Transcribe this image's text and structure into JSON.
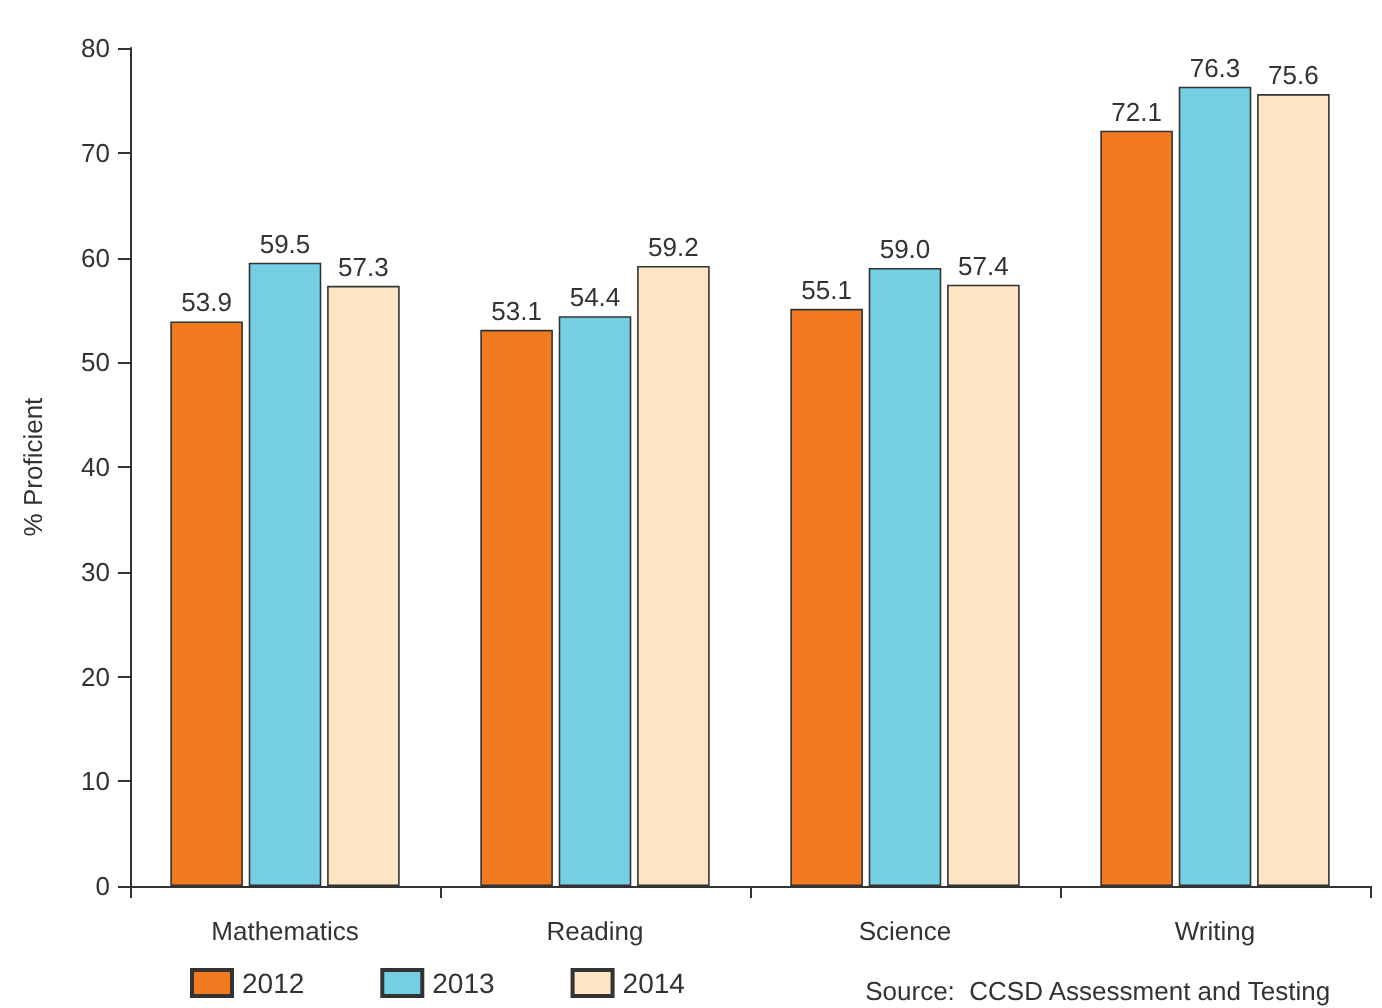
{
  "chart_data": {
    "type": "bar",
    "ylabel": "% Proficient",
    "categories": [
      "Mathematics",
      "Reading",
      "Science",
      "Writing"
    ],
    "series": [
      {
        "name": "2012",
        "color": "#f47a20",
        "values": [
          53.9,
          53.1,
          55.1,
          72.1
        ],
        "value_labels": [
          "53.9",
          "53.1",
          "55.1",
          "72.1"
        ]
      },
      {
        "name": "2013",
        "color": "#74cfe3",
        "values": [
          59.5,
          54.4,
          59.0,
          76.3
        ],
        "value_labels": [
          "59.5",
          "54.4",
          "59.0",
          "76.3"
        ]
      },
      {
        "name": "2014",
        "color": "#fde5c4",
        "values": [
          57.3,
          59.2,
          57.4,
          75.6
        ],
        "value_labels": [
          "57.3",
          "59.2",
          "57.4",
          "75.6"
        ]
      }
    ],
    "ylim": [
      0,
      80
    ],
    "yticks": [
      0,
      10,
      20,
      30,
      40,
      50,
      60,
      70,
      80
    ],
    "grid": false,
    "legend": "bottom left",
    "annotations": [
      "Source:  CCSD Assessment and Testing"
    ]
  }
}
